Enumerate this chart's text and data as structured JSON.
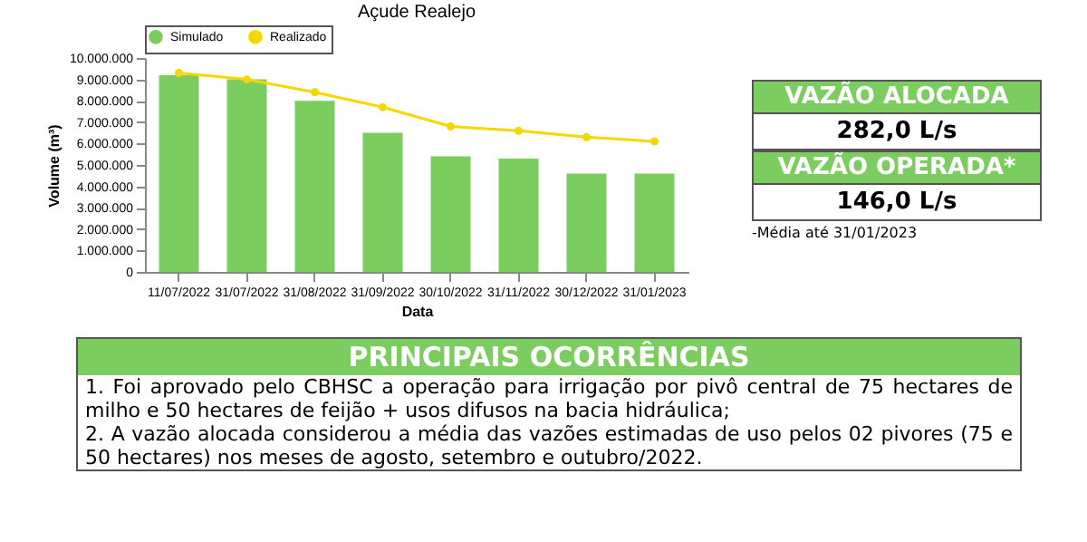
{
  "chart_data": {
    "type": "bar",
    "title": "Açude Realejo",
    "xlabel": "Data",
    "ylabel": "Volume (m³)",
    "categories": [
      "11/07/2022",
      "31/07/2022",
      "31/08/2022",
      "31/09/2022",
      "30/10/2022",
      "31/11/2022",
      "30/12/2022",
      "31/01/2023"
    ],
    "series": [
      {
        "name": "Simulado",
        "color": "#7ccd5f",
        "values": [
          9200000,
          9000000,
          8000000,
          6500000,
          5400000,
          5300000,
          4600000,
          4600000
        ]
      },
      {
        "name": "Realizado",
        "type": "line",
        "color": "#f5d800",
        "values": [
          9300000,
          9000000,
          8400000,
          7700000,
          6800000,
          6600000,
          6300000,
          6100000
        ]
      }
    ],
    "ylim": [
      0,
      10000000
    ],
    "yticks": [
      {
        "value": 0,
        "label": "0"
      },
      {
        "value": 1000000,
        "label": "1.000.000"
      },
      {
        "value": 2000000,
        "label": "2.000.000"
      },
      {
        "value": 3000000,
        "label": "3.000.000"
      },
      {
        "value": 4000000,
        "label": "4.000.000"
      },
      {
        "value": 5000000,
        "label": "5.000.000"
      },
      {
        "value": 6000000,
        "label": "6.000.000"
      },
      {
        "value": 7000000,
        "label": "7.000.000"
      },
      {
        "value": 8000000,
        "label": "8.000.000"
      },
      {
        "value": 9000000,
        "label": "9.000.000"
      },
      {
        "value": 10000000,
        "label": "10.000.000"
      }
    ],
    "grid": false,
    "legend": "top",
    "marker": "circle",
    "annotations": [
      "VAZÃO ALOCADA",
      "282,0 L/s",
      "VAZÃO OPERADA*",
      "146,0 L/s",
      "-Média até 31/01/2023",
      "PRINCIPAIS OCORRÊNCIAS",
      "1. Foi aprovado pelo CBHSC a operação para irrigação por pivô central de 75 hectares de milho e 50 hectares de feijão + usos difusos na bacia hidráulica;",
      "2. A vazão alocada considerou a média das vazões estimadas de uso pelos 02 pivores (75 e 50 hectares) nos meses de agosto, setembro e outubro/2022."
    ]
  }
}
